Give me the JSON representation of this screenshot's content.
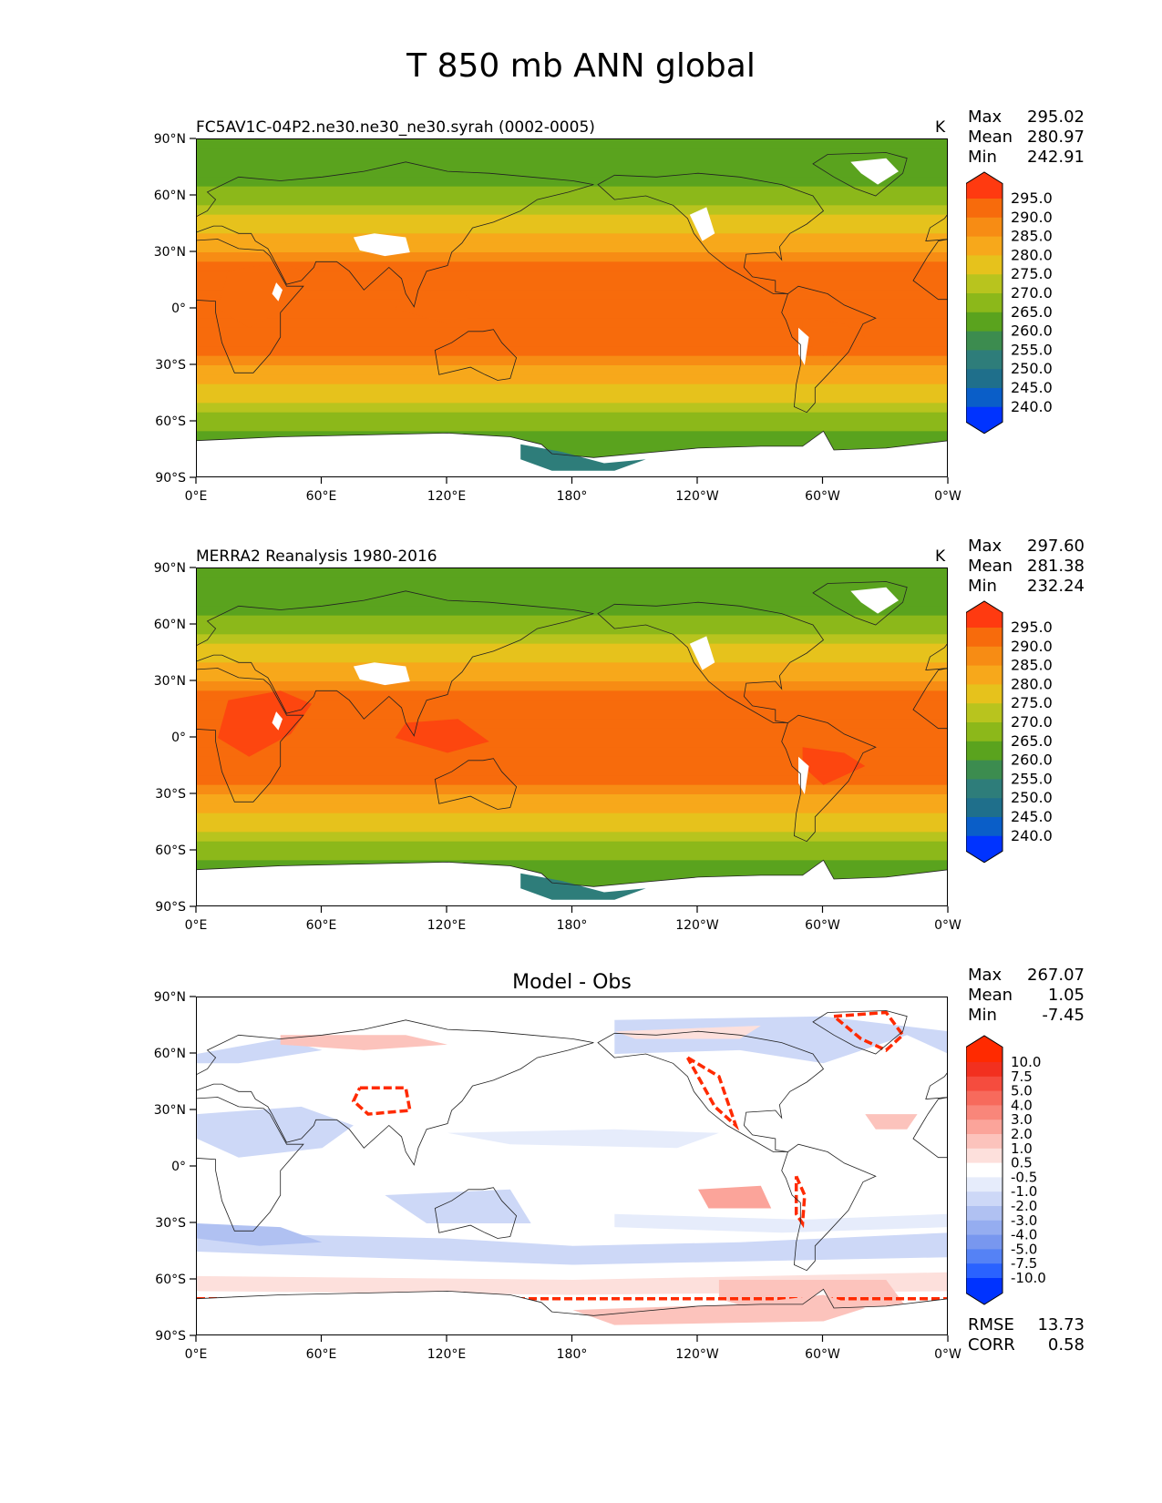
{
  "figure": {
    "title": "T 850 mb ANN global",
    "lat_ticks": [
      "90°N",
      "60°N",
      "30°N",
      "0°",
      "30°S",
      "60°S",
      "90°S"
    ],
    "lon_ticks": [
      "0°E",
      "60°E",
      "120°E",
      "180°",
      "120°W",
      "60°W",
      "0°W"
    ]
  },
  "panels": [
    {
      "title": "FC5AV1C-04P2.ne30.ne30_ne30.syrah (0002-0005)",
      "units": "K",
      "stats": {
        "max_label": "Max",
        "max": "295.02",
        "mean_label": "Mean",
        "mean": "280.97",
        "min_label": "Min",
        "min": "242.91"
      },
      "colorbar_labels": [
        "295.0",
        "290.0",
        "285.0",
        "280.0",
        "275.0",
        "270.0",
        "265.0",
        "260.0",
        "255.0",
        "250.0",
        "245.0",
        "240.0"
      ]
    },
    {
      "title": "MERRA2 Reanalysis 1980-2016",
      "units": "K",
      "stats": {
        "max_label": "Max",
        "max": "297.60",
        "mean_label": "Mean",
        "mean": "281.38",
        "min_label": "Min",
        "min": "232.24"
      },
      "colorbar_labels": [
        "295.0",
        "290.0",
        "285.0",
        "280.0",
        "275.0",
        "270.0",
        "265.0",
        "260.0",
        "255.0",
        "250.0",
        "245.0",
        "240.0"
      ]
    },
    {
      "title": "Model - Obs",
      "units": "",
      "stats": {
        "max_label": "Max",
        "max": "267.07",
        "mean_label": "Mean",
        "mean": "1.05",
        "min_label": "Min",
        "min": "-7.45"
      },
      "colorbar_labels": [
        "10.0",
        "7.5",
        "5.0",
        "4.0",
        "3.0",
        "2.0",
        "1.0",
        "0.5",
        "-0.5",
        "-1.0",
        "-2.0",
        "-3.0",
        "-4.0",
        "-5.0",
        "-7.5",
        "-10.0"
      ],
      "metrics": {
        "rmse_label": "RMSE",
        "rmse": "13.73",
        "corr_label": "CORR",
        "corr": "0.58"
      }
    }
  ],
  "colors": {
    "temp_scale": [
      "#0033ff",
      "#0a5ec8",
      "#1f6f8b",
      "#2e7d7a",
      "#3c8c4f",
      "#5aa31e",
      "#8cb81a",
      "#b8c41e",
      "#e6c21c",
      "#f7a81b",
      "#f78c14",
      "#f76b0c",
      "#ff3a10"
    ],
    "diff_scale": [
      "#0033ff",
      "#2a62ff",
      "#5582f5",
      "#7897ef",
      "#95adf0",
      "#b0c1f2",
      "#cdd8f7",
      "#e6ecfb",
      "#ffffff",
      "#fde0dc",
      "#fcc3bc",
      "#fba49a",
      "#f9867a",
      "#f76a5c",
      "#f54c3e",
      "#f2301f",
      "#ff2a00"
    ]
  }
}
